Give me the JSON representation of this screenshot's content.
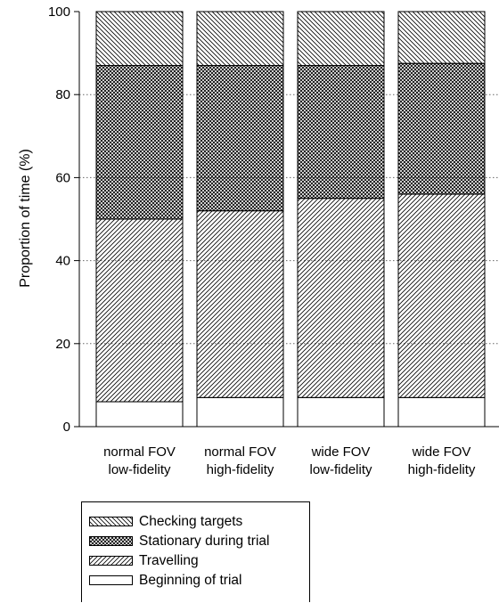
{
  "chart_data": {
    "type": "bar",
    "stacked": true,
    "ylabel": "Proportion of time (%)",
    "ylim": [
      0,
      100
    ],
    "yticks": [
      0,
      20,
      40,
      60,
      80,
      100
    ],
    "grid": "horizontal dotted",
    "legend_position": "bottom",
    "categories": [
      [
        "normal FOV",
        "low-fidelity"
      ],
      [
        "normal FOV",
        "high-fidelity"
      ],
      [
        "wide FOV",
        "low-fidelity"
      ],
      [
        "wide FOV",
        "high-fidelity"
      ]
    ],
    "series": [
      {
        "name": "Beginning of trial",
        "pattern": "none",
        "values": [
          6,
          7,
          7,
          7
        ]
      },
      {
        "name": "Travelling",
        "pattern": "diag-up",
        "values": [
          44,
          45,
          48,
          49
        ]
      },
      {
        "name": "Stationary during trial",
        "pattern": "crosshatch",
        "values": [
          37,
          35,
          32,
          31.5
        ]
      },
      {
        "name": "Checking targets",
        "pattern": "diag-down",
        "values": [
          13,
          13,
          13,
          12.5
        ]
      }
    ],
    "legend_order": [
      "Checking targets",
      "Stationary during trial",
      "Travelling",
      "Beginning of trial"
    ]
  }
}
